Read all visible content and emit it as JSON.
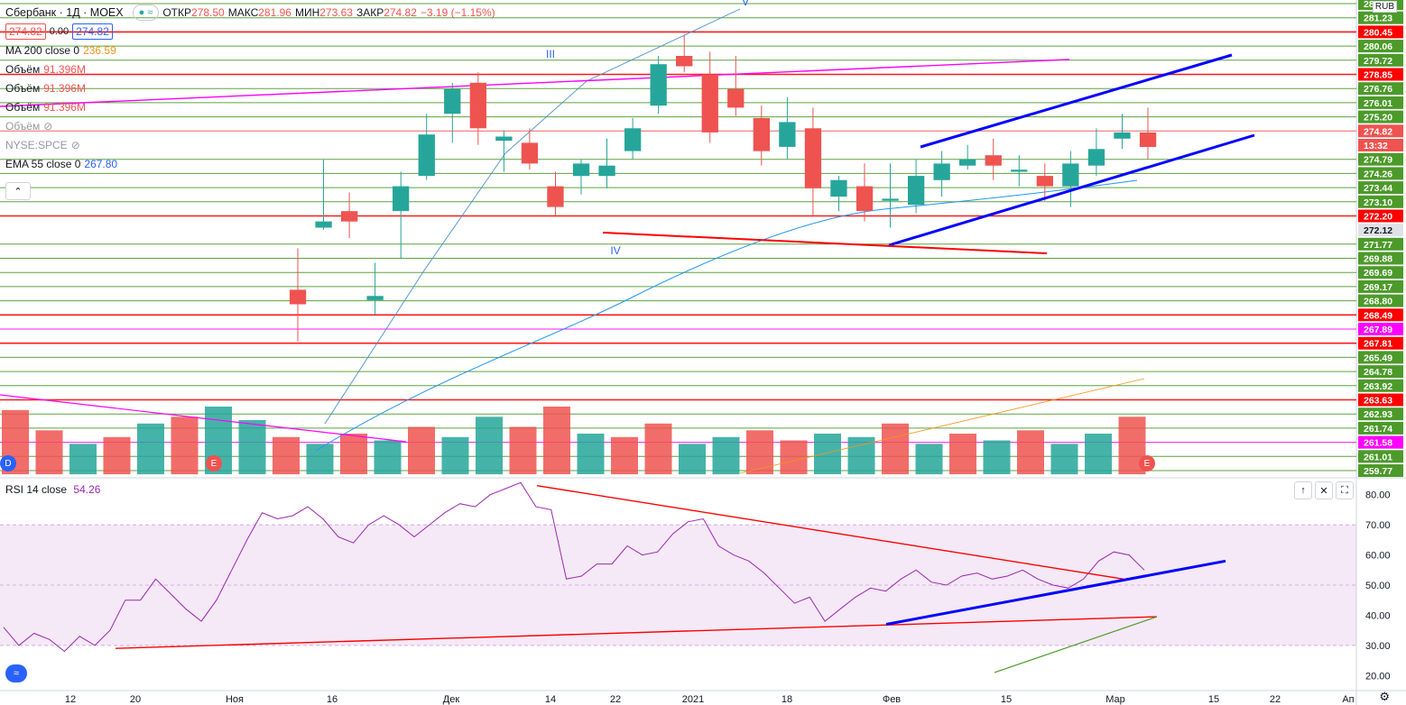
{
  "header": {
    "symbol": "Сбербанк · 1Д · MOEX",
    "pill": "● ≈",
    "open_k": "ОТКР",
    "open_v": "278.50",
    "high_k": "МАКС",
    "high_v": "281.96",
    "low_k": "МИН",
    "low_v": "273.63",
    "close_k": "ЗАКР",
    "close_v": "274.82",
    "change": "−3.19 (−1.15%)",
    "bid": "274.82",
    "spread": "0.00",
    "ask": "274.82"
  },
  "indicators": {
    "ma200": {
      "label": "MA 200 close 0",
      "value": "236.59"
    },
    "vol1": {
      "label": "Объём",
      "value": "91.396M"
    },
    "vol2": {
      "label": "Объём",
      "value": "91.396M"
    },
    "vol3": {
      "label": "Объём",
      "value": "91.396M"
    },
    "vol4": {
      "label": "Объём"
    },
    "compare": {
      "label": "NYSE:SPCE"
    },
    "ema55": {
      "label": "EMA 55 close 0",
      "value": "267.80"
    },
    "rsi": {
      "label": "RSI 14 close",
      "value": "54.26"
    }
  },
  "currency": "RUB",
  "price_scale": [
    {
      "v": "281.93",
      "c": "#4c9a2a"
    },
    {
      "v": "281.23",
      "c": "#4c9a2a"
    },
    {
      "v": "280.45",
      "c": "#ff0000"
    },
    {
      "v": "280.06",
      "c": "#4c9a2a"
    },
    {
      "v": "279.72",
      "c": "#4c9a2a"
    },
    {
      "v": "278.85",
      "c": "#ff0000"
    },
    {
      "v": "276.76",
      "c": "#4c9a2a"
    },
    {
      "v": "276.01",
      "c": "#4c9a2a"
    },
    {
      "v": "275.20",
      "c": "#4c9a2a"
    },
    {
      "v": "274.82",
      "c": "#ef5350"
    },
    {
      "v": "13:32",
      "c": "#ef5350"
    },
    {
      "v": "274.79",
      "c": "#4c9a2a"
    },
    {
      "v": "274.26",
      "c": "#4c9a2a"
    },
    {
      "v": "273.44",
      "c": "#4c9a2a"
    },
    {
      "v": "273.10",
      "c": "#4c9a2a"
    },
    {
      "v": "272.20",
      "c": "#ff0000"
    },
    {
      "v": "272.12",
      "c": "#dfe1e6"
    },
    {
      "v": "271.77",
      "c": "#4c9a2a"
    },
    {
      "v": "269.88",
      "c": "#4c9a2a"
    },
    {
      "v": "269.69",
      "c": "#4c9a2a"
    },
    {
      "v": "269.17",
      "c": "#4c9a2a"
    },
    {
      "v": "268.80",
      "c": "#4c9a2a"
    },
    {
      "v": "268.49",
      "c": "#ff0000"
    },
    {
      "v": "267.89",
      "c": "#ff00ff"
    },
    {
      "v": "267.81",
      "c": "#ff0000"
    },
    {
      "v": "265.49",
      "c": "#4c9a2a"
    },
    {
      "v": "264.78",
      "c": "#4c9a2a"
    },
    {
      "v": "263.92",
      "c": "#4c9a2a"
    },
    {
      "v": "263.63",
      "c": "#ff0000"
    },
    {
      "v": "262.93",
      "c": "#4c9a2a"
    },
    {
      "v": "261.74",
      "c": "#4c9a2a"
    },
    {
      "v": "261.58",
      "c": "#ff00ff"
    },
    {
      "v": "261.01",
      "c": "#4c9a2a"
    },
    {
      "v": "259.77",
      "c": "#4c9a2a"
    }
  ],
  "rsi_scale": [
    "80.00",
    "70.00",
    "60.00",
    "50.00",
    "40.00",
    "30.00",
    "20.00"
  ],
  "time_axis": [
    "12",
    "20",
    "Ноя",
    "16",
    "Дек",
    "14",
    "22",
    "2021",
    "18",
    "Фев",
    "15",
    "Мар",
    "15",
    "22",
    "Ап"
  ],
  "wave_labels": [
    "III",
    "IV",
    "V"
  ],
  "events": [
    {
      "icon": "dividend-icon",
      "text": "D",
      "color": "#2962ff"
    },
    {
      "icon": "earnings-icon",
      "text": "E",
      "color": "#ef5350"
    },
    {
      "icon": "earnings-icon",
      "text": "E",
      "color": "#ef5350"
    }
  ],
  "badge": "fx",
  "colors": {
    "up": "#26a69a",
    "down": "#ef5350",
    "rsi": "#9c27b0",
    "trend": "#0000ff",
    "level_red": "#ff0000",
    "level_green": "#4c9a2a"
  },
  "chart_data": {
    "type": "candlestick",
    "price_range": [
      259.5,
      282.5
    ],
    "rsi_range": [
      15,
      85
    ],
    "candles": [
      [
        268.5,
        267.8,
        270.5,
        266.0
      ],
      [
        271.5,
        271.8,
        274.8,
        271.4
      ],
      [
        272.3,
        271.8,
        273.2,
        271.0
      ],
      [
        268.0,
        268.2,
        269.8,
        267.3
      ],
      [
        272.3,
        273.5,
        274.2,
        270.0
      ],
      [
        274.0,
        276.0,
        277.0,
        273.8
      ],
      [
        277.0,
        278.2,
        278.5,
        275.6
      ],
      [
        278.5,
        276.3,
        279.0,
        275.5
      ],
      [
        275.7,
        275.9,
        276.2,
        274.2
      ],
      [
        275.6,
        274.6,
        276.3,
        274.3
      ],
      [
        273.5,
        272.5,
        274.2,
        272.1
      ],
      [
        274.0,
        274.6,
        274.8,
        273.1
      ],
      [
        274.0,
        274.5,
        275.8,
        273.4
      ],
      [
        275.2,
        276.3,
        276.8,
        274.8
      ],
      [
        277.4,
        279.4,
        279.8,
        277.0
      ],
      [
        279.8,
        279.3,
        280.8,
        279.0
      ],
      [
        278.9,
        276.1,
        280.0,
        275.6
      ],
      [
        278.2,
        277.3,
        279.8,
        276.9
      ],
      [
        276.8,
        275.2,
        277.4,
        274.5
      ],
      [
        275.4,
        276.6,
        277.8,
        274.8
      ],
      [
        276.3,
        273.4,
        277.3,
        272.1
      ],
      [
        273.0,
        273.8,
        274.0,
        272.3
      ],
      [
        273.5,
        272.3,
        274.6,
        271.8
      ],
      [
        272.8,
        272.9,
        274.6,
        271.5
      ],
      [
        272.6,
        274.0,
        274.8,
        272.2
      ],
      [
        273.8,
        274.6,
        275.2,
        273.0
      ],
      [
        274.5,
        274.8,
        275.5,
        274.3
      ],
      [
        275.0,
        274.5,
        275.8,
        273.8
      ],
      [
        274.2,
        274.3,
        275.0,
        273.5
      ],
      [
        274.0,
        273.5,
        274.6,
        272.8
      ],
      [
        273.5,
        274.6,
        275.2,
        272.5
      ],
      [
        274.5,
        275.3,
        276.3,
        274.0
      ],
      [
        275.8,
        276.1,
        277.0,
        275.3
      ],
      [
        276.1,
        275.4,
        277.3,
        274.8
      ]
    ],
    "volume": [
      [
        0.95,
        "d"
      ],
      [
        0.65,
        "d"
      ],
      [
        0.45,
        "u"
      ],
      [
        0.55,
        "d"
      ],
      [
        0.75,
        "u"
      ],
      [
        0.85,
        "d"
      ],
      [
        1.0,
        "u"
      ],
      [
        0.8,
        "u"
      ],
      [
        0.55,
        "d"
      ],
      [
        0.45,
        "u"
      ],
      [
        0.6,
        "d"
      ],
      [
        0.5,
        "u"
      ],
      [
        0.7,
        "d"
      ],
      [
        0.55,
        "u"
      ],
      [
        0.85,
        "u"
      ],
      [
        0.7,
        "d"
      ],
      [
        1.0,
        "d"
      ],
      [
        0.6,
        "u"
      ],
      [
        0.55,
        "d"
      ],
      [
        0.75,
        "d"
      ],
      [
        0.45,
        "u"
      ],
      [
        0.55,
        "u"
      ],
      [
        0.65,
        "d"
      ],
      [
        0.5,
        "d"
      ],
      [
        0.6,
        "u"
      ],
      [
        0.55,
        "u"
      ],
      [
        0.75,
        "d"
      ],
      [
        0.45,
        "u"
      ],
      [
        0.6,
        "d"
      ],
      [
        0.5,
        "u"
      ],
      [
        0.65,
        "d"
      ],
      [
        0.45,
        "u"
      ],
      [
        0.6,
        "u"
      ],
      [
        0.85,
        "d"
      ]
    ],
    "rsi": [
      36,
      30,
      34,
      32,
      28,
      33,
      30,
      35,
      45,
      45,
      52,
      47,
      42,
      38,
      45,
      55,
      65,
      74,
      72,
      73,
      76,
      72,
      66,
      64,
      70,
      73,
      70,
      66,
      70,
      74,
      77,
      76,
      80,
      82,
      84,
      76,
      75,
      52,
      53,
      57,
      57,
      63,
      60,
      61,
      67,
      71,
      72,
      63,
      60,
      58,
      54,
      49,
      44,
      46,
      38,
      42,
      46,
      49,
      48,
      52,
      55,
      51,
      50,
      53,
      54,
      52,
      53,
      55,
      52,
      50,
      49,
      52,
      58,
      61,
      60,
      55
    ],
    "rsi_overbought": 70,
    "rsi_oversold": 30
  }
}
